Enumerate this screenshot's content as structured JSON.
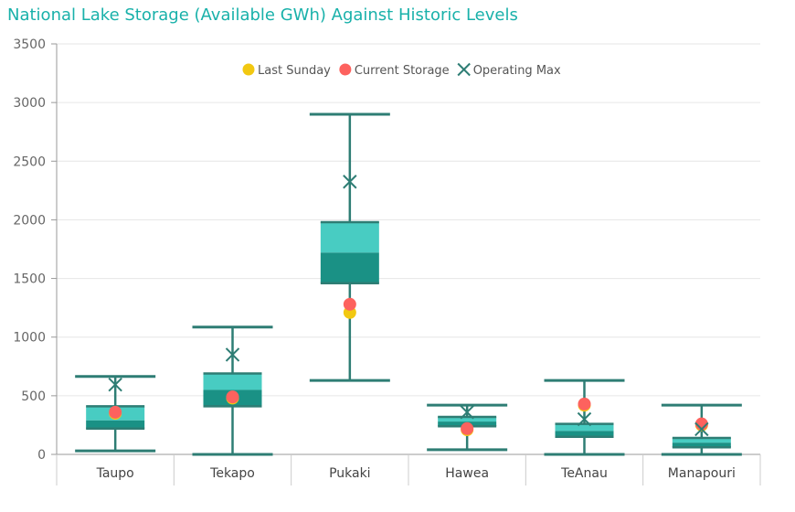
{
  "chart_data": {
    "type": "box",
    "title": "National Lake Storage (Available GWh) Against Historic Levels",
    "ylim": [
      0,
      3500
    ],
    "yticks": [
      0,
      500,
      1000,
      1500,
      2000,
      2500,
      3000,
      3500
    ],
    "grid": true,
    "legend_position": "top-center",
    "categories": [
      "Taupo",
      "Tekapo",
      "Pukaki",
      "Hawea",
      "TeAnau",
      "Manapouri"
    ],
    "boxes": [
      {
        "category": "Taupo",
        "min": 30,
        "q1": 220,
        "median": 290,
        "q3": 410,
        "max": 665
      },
      {
        "category": "Tekapo",
        "min": 0,
        "q1": 410,
        "median": 550,
        "q3": 690,
        "max": 1085
      },
      {
        "category": "Pukaki",
        "min": 630,
        "q1": 1460,
        "median": 1720,
        "q3": 1980,
        "max": 2900
      },
      {
        "category": "Hawea",
        "min": 40,
        "q1": 240,
        "median": 280,
        "q3": 320,
        "max": 420
      },
      {
        "category": "TeAnau",
        "min": 0,
        "q1": 150,
        "median": 200,
        "q3": 260,
        "max": 630
      },
      {
        "category": "Manapouri",
        "min": 0,
        "q1": 60,
        "median": 100,
        "q3": 140,
        "max": 420
      }
    ],
    "series": [
      {
        "name": "Last Sunday",
        "marker": "circle",
        "color": "#F2C811",
        "values": [
          350,
          480,
          1210,
          210,
          420,
          250
        ]
      },
      {
        "name": "Current Storage",
        "marker": "circle",
        "color": "#FD625E",
        "values": [
          360,
          490,
          1280,
          220,
          430,
          260
        ]
      },
      {
        "name": "Operating Max",
        "marker": "x",
        "color": "#2E7D74",
        "values": [
          595,
          850,
          2325,
          360,
          300,
          215
        ]
      }
    ],
    "colors": {
      "box_upper": "#48CCC2",
      "box_lower": "#1A9185",
      "whisker": "#2E7D74",
      "title": "#19B1AA",
      "grid": "#E6E6E6"
    }
  }
}
